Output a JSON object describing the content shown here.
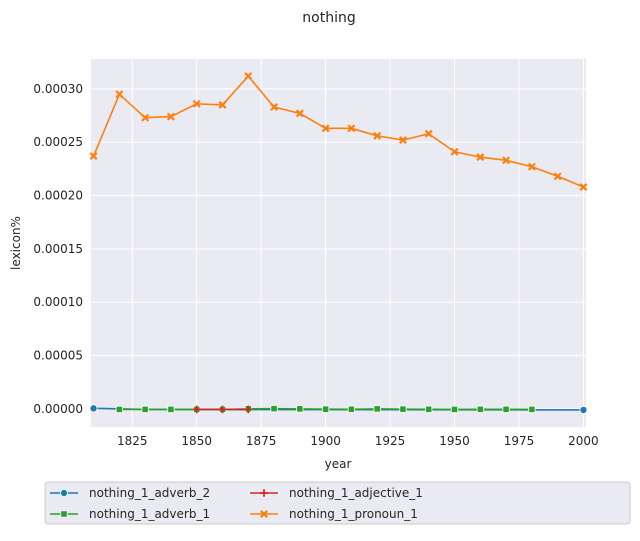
{
  "chart_data": {
    "type": "line",
    "title": "nothing",
    "xlabel": "year",
    "ylabel": "lexicon%",
    "xlim": [
      1809,
      2001
    ],
    "ylim": [
      -1.7e-05,
      0.000328
    ],
    "xticks": [
      1825,
      1850,
      1875,
      1900,
      1925,
      1950,
      1975,
      2000
    ],
    "yticks": [
      0.0,
      5e-05,
      0.0001,
      0.00015,
      0.0002,
      0.00025,
      0.0003
    ],
    "ytick_labels": [
      "0.00000",
      "0.00005",
      "0.00010",
      "0.00015",
      "0.00020",
      "0.00025",
      "0.00030"
    ],
    "grid": true,
    "legend_position": "bottom, outside plot",
    "series": [
      {
        "name": "nothing_1_adverb_2",
        "color": "#1f77b4",
        "marker": "circle",
        "x": [
          1810,
          1830,
          2000
        ],
        "y": [
          5e-07,
          -5e-07,
          -1e-06
        ]
      },
      {
        "name": "nothing_1_pronoun_1",
        "color": "#ff7f0e",
        "marker": "x",
        "x": [
          1810,
          1820,
          1830,
          1840,
          1850,
          1860,
          1870,
          1880,
          1890,
          1900,
          1910,
          1920,
          1930,
          1940,
          1950,
          1960,
          1970,
          1980,
          1990,
          2000
        ],
        "y": [
          0.000237,
          0.000295,
          0.000273,
          0.000274,
          0.000286,
          0.000285,
          0.000312,
          0.000283,
          0.000277,
          0.000263,
          0.000263,
          0.000256,
          0.000252,
          0.000258,
          0.000241,
          0.000236,
          0.000233,
          0.000227,
          0.000218,
          0.000208
        ]
      },
      {
        "name": "nothing_1_adverb_1",
        "color": "#2ca02c",
        "marker": "square",
        "x": [
          1820,
          1830,
          1840,
          1850,
          1860,
          1870,
          1880,
          1890,
          1900,
          1910,
          1920,
          1930,
          1940,
          1950,
          1960,
          1970,
          1980
        ],
        "y": [
          -5e-07,
          -5e-07,
          -5e-07,
          -5e-07,
          -5e-07,
          0.0,
          2e-07,
          0.0,
          -3e-07,
          -4e-07,
          0.0,
          -3e-07,
          -4e-07,
          -5e-07,
          -4e-07,
          -4e-07,
          -5e-07
        ]
      },
      {
        "name": "nothing_1_adjective_1",
        "color": "#d62728",
        "marker": "plus",
        "x": [
          1850,
          1860,
          1870
        ],
        "y": [
          -5e-07,
          -5e-07,
          -5e-07
        ]
      }
    ]
  },
  "legend_order": [
    0,
    2,
    3,
    1
  ]
}
